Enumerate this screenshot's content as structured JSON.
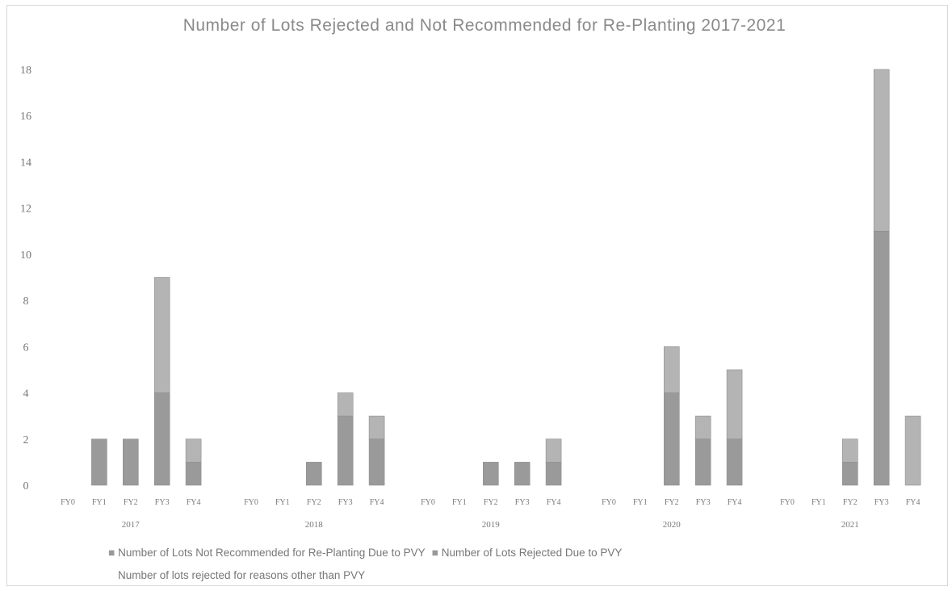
{
  "chart_data": {
    "type": "bar",
    "stacked": true,
    "title": "Number of Lots Rejected and Not Recommended for Re-Planting 2017-2021",
    "ylim": [
      0,
      18
    ],
    "yticks": [
      0,
      2,
      4,
      6,
      8,
      10,
      12,
      14,
      16,
      18
    ],
    "groups": [
      "2017",
      "2018",
      "2019",
      "2020",
      "2021"
    ],
    "categories": [
      "FY0",
      "FY1",
      "FY2",
      "FY3",
      "FY4"
    ],
    "series": [
      {
        "name": "Number of Lots Not Recommended for Re-Planting Due to PVY",
        "color": "#9a9a9a",
        "values": [
          [
            0,
            2,
            2,
            4,
            1
          ],
          [
            0,
            0,
            1,
            3,
            2
          ],
          [
            0,
            0,
            1,
            1,
            1
          ],
          [
            0,
            0,
            4,
            2,
            2
          ],
          [
            0,
            0,
            1,
            11,
            0
          ]
        ]
      },
      {
        "name": "Number of Lots Rejected Due to PVY",
        "color": "#b4b4b4",
        "values": [
          [
            0,
            0,
            0,
            5,
            1
          ],
          [
            0,
            0,
            0,
            1,
            1
          ],
          [
            0,
            0,
            0,
            0,
            1
          ],
          [
            0,
            0,
            2,
            1,
            3
          ],
          [
            0,
            0,
            1,
            7,
            3
          ]
        ]
      },
      {
        "name": "Number of lots rejected for reasons other than PVY",
        "color": "#cfcfcf",
        "values": [
          [
            0,
            0,
            0,
            0,
            0
          ],
          [
            0,
            0,
            0,
            0,
            0
          ],
          [
            0,
            0,
            0,
            0,
            0
          ],
          [
            0,
            0,
            0,
            0,
            0
          ],
          [
            0,
            0,
            0,
            0,
            0
          ]
        ]
      }
    ],
    "legend_position": "bottom",
    "grid": false
  },
  "legend": {
    "line1_a": "Number of Lots Not Recommended for Re-Planting Due to PVY",
    "line1_b": "Number of Lots Rejected Due to PVY",
    "line2": "Number of lots rejected for reasons other than PVY"
  }
}
